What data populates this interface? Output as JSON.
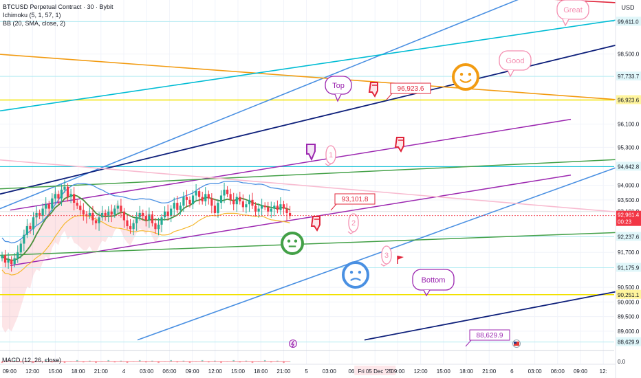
{
  "header": {
    "symbol_line": "BTCUSD Perpetual Contract · 30 · Bybit",
    "ichimoku": "Ichimoku (5, 1, 57, 1)",
    "bb": "BB (20, SMA, close, 2)",
    "macd": "MACD (12, 26, close)",
    "currency": "USD"
  },
  "chart_data": {
    "type": "candlestick",
    "title": "BTCUSD Perpetual Contract · 30 · Bybit",
    "ylim": [
      87800,
      100800
    ],
    "price_ticks": [
      99611.0,
      98500.0,
      97733.7,
      96923.6,
      96100.0,
      95300.0,
      94642.8,
      94000.0,
      93500.0,
      93101.8,
      92237.6,
      91700.0,
      91175.9,
      90500.0,
      90251.1,
      90000.0,
      89500.0,
      89000.0,
      88629.9
    ],
    "price_tick_labels": [
      "99,611.0",
      "98,500.0",
      "97,733.7",
      "96,923.6",
      "96,100.0",
      "95,300.0",
      "94,642.8",
      "94,000.0",
      "93,500.0",
      "93,101.8",
      "92,237.6",
      "91,700.0",
      "91,175.9",
      "90,500.0",
      "90,251.1",
      "90,000.0",
      "89,500.0",
      "89,000.0",
      "88,629.9"
    ],
    "highlight_levels": [
      {
        "price": 96923.6,
        "label": "96,923.6",
        "color": "#f2e100"
      },
      {
        "price": 94642.8,
        "label": "94,642.8",
        "color": "#00bcd4"
      },
      {
        "price": 93101.8,
        "label": "93,101.8",
        "color": "#e0e0e0"
      },
      {
        "price": 92237.6,
        "label": "92,237.6",
        "color": "#b2ebf2"
      },
      {
        "price": 91175.9,
        "label": "91,175.9",
        "color": "#b2ebf2"
      },
      {
        "price": 90251.1,
        "label": "90,251.1",
        "color": "#f2e100"
      },
      {
        "price": 99611.0,
        "label": "99,611.0",
        "color": "#b2ebf2"
      },
      {
        "price": 97733.7,
        "label": "97,733.7",
        "color": "#b2ebf2"
      },
      {
        "price": 88629.9,
        "label": "88,629.9",
        "color": "#b2ebf2"
      }
    ],
    "current_price": {
      "price": 92961.4,
      "label": "92,961.4",
      "countdown": "00:23"
    },
    "x_labels": [
      "09:00",
      "12:00",
      "15:00",
      "18:00",
      "21:00",
      "4",
      "03:00",
      "06:00",
      "09:00",
      "12:00",
      "15:00",
      "18:00",
      "21:00",
      "5",
      "03:00",
      "06:",
      "Fri 05 Dec '25",
      "09:00",
      "12:00",
      "15:00",
      "18:00",
      "21:00",
      "6",
      "03:00",
      "06:00",
      "09:00",
      "12:"
    ],
    "close_series": [
      91600,
      91350,
      91450,
      91300,
      91500,
      91700,
      92000,
      92300,
      92600,
      92500,
      92900,
      93050,
      92950,
      93200,
      93350,
      93200,
      93550,
      93700,
      93550,
      93850,
      93950,
      93600,
      93700,
      93400,
      93300,
      93150,
      93000,
      92950,
      93050,
      92800,
      92700,
      92900,
      93050,
      92950,
      93100,
      93000,
      93200,
      93300,
      93100,
      92800,
      92600,
      92500,
      92700,
      92900,
      93050,
      92950,
      92800,
      93000,
      92700,
      92500,
      92650,
      92900,
      93100,
      92950,
      93200,
      93400,
      93150,
      93300,
      93600,
      93500,
      93350,
      93650,
      93800,
      93600,
      93450,
      93700,
      93550,
      93300,
      93050,
      93400,
      93650,
      93850,
      93700,
      93500,
      93350,
      93600,
      93450,
      93250,
      93350,
      93500,
      93300,
      93100,
      93200,
      93300,
      93250,
      93100,
      93200,
      93300,
      93150,
      93350,
      93200,
      93050,
      92950
    ],
    "annotations": [
      {
        "type": "label",
        "text": "96,923.6"
      },
      {
        "type": "label",
        "text": "93,101.8"
      },
      {
        "type": "label",
        "text": "88,629.9"
      },
      {
        "type": "bubble",
        "text": "Top"
      },
      {
        "type": "bubble",
        "text": "Good"
      },
      {
        "type": "bubble",
        "text": "Great"
      },
      {
        "type": "bubble",
        "text": "Bottom"
      },
      {
        "type": "bubble",
        "text": "1"
      },
      {
        "type": "bubble",
        "text": "2"
      },
      {
        "type": "bubble",
        "text": "3"
      }
    ]
  },
  "colors": {
    "bull": "#22ab94",
    "bear": "#f23645",
    "grid": "#f0f3fa",
    "accent_blue": "#4a90e2",
    "navy": "#0d1f7a",
    "purple": "#9c27b0",
    "green": "#43a047",
    "orange": "#f5a623",
    "teal": "#00bcd4",
    "yellow": "#f2e100",
    "red": "#e0243a"
  },
  "icons": [
    "hand-pointer-icon",
    "smiley-happy-icon",
    "smiley-neutral-icon",
    "smiley-sad-icon",
    "lightning-icon",
    "us-flag-icon",
    "red-flag-icon"
  ]
}
